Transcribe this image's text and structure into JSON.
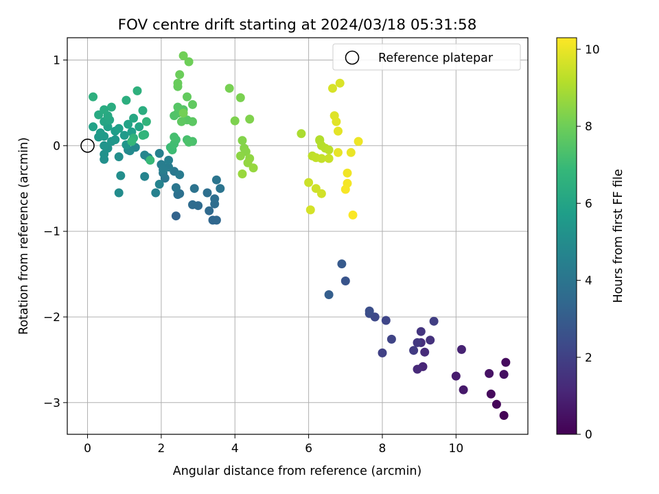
{
  "chart_data": {
    "type": "scatter",
    "title": "FOV centre drift starting at 2024/03/18 05:31:58",
    "xlabel": "Angular distance from reference (arcmin)",
    "ylabel": "Rotation from reference (arcmin)",
    "xlim": [
      -0.55,
      11.95
    ],
    "ylim": [
      -3.37,
      1.26
    ],
    "xticks": [
      0,
      2,
      4,
      6,
      8,
      10
    ],
    "yticks": [
      -3,
      -2,
      -1,
      0,
      1
    ],
    "grid": true,
    "legend": {
      "position": "top-right",
      "entries": [
        {
          "label": "Reference platepar",
          "marker": "open-circle"
        }
      ]
    },
    "reference_point": {
      "x": 0,
      "y": 0
    },
    "colorbar": {
      "label": "Hours from first FF file",
      "colormap": "viridis",
      "range": [
        0,
        10.3
      ],
      "ticks": [
        0,
        2,
        4,
        6,
        8,
        10
      ]
    },
    "colormap_stops": [
      "#440154",
      "#482878",
      "#3e4989",
      "#31688e",
      "#26828e",
      "#1f9e89",
      "#35b779",
      "#6ece58",
      "#b5de2b",
      "#fde725"
    ],
    "points": [
      {
        "x": 11.3,
        "y": -3.15,
        "h": 0.05
      },
      {
        "x": 11.1,
        "y": -3.02,
        "h": 0.15
      },
      {
        "x": 10.95,
        "y": -2.9,
        "h": 0.25
      },
      {
        "x": 11.35,
        "y": -2.53,
        "h": 0.3
      },
      {
        "x": 11.3,
        "y": -2.67,
        "h": 0.4
      },
      {
        "x": 10.9,
        "y": -2.66,
        "h": 0.5
      },
      {
        "x": 10.2,
        "y": -2.85,
        "h": 0.7
      },
      {
        "x": 10.0,
        "y": -2.69,
        "h": 0.8
      },
      {
        "x": 10.15,
        "y": -2.38,
        "h": 1.0
      },
      {
        "x": 9.1,
        "y": -2.58,
        "h": 1.1
      },
      {
        "x": 8.95,
        "y": -2.61,
        "h": 1.2
      },
      {
        "x": 9.15,
        "y": -2.41,
        "h": 1.3
      },
      {
        "x": 9.05,
        "y": -2.3,
        "h": 1.4
      },
      {
        "x": 9.3,
        "y": -2.27,
        "h": 1.5
      },
      {
        "x": 9.05,
        "y": -2.17,
        "h": 1.6
      },
      {
        "x": 8.95,
        "y": -2.3,
        "h": 1.7
      },
      {
        "x": 8.85,
        "y": -2.39,
        "h": 1.8
      },
      {
        "x": 9.4,
        "y": -2.05,
        "h": 1.9
      },
      {
        "x": 8.0,
        "y": -2.42,
        "h": 2.0
      },
      {
        "x": 8.25,
        "y": -2.26,
        "h": 2.1
      },
      {
        "x": 8.1,
        "y": -2.04,
        "h": 2.2
      },
      {
        "x": 7.8,
        "y": -2.0,
        "h": 2.3
      },
      {
        "x": 7.65,
        "y": -1.96,
        "h": 2.4
      },
      {
        "x": 7.65,
        "y": -1.93,
        "h": 2.5
      },
      {
        "x": 7.0,
        "y": -1.58,
        "h": 2.7
      },
      {
        "x": 6.9,
        "y": -1.38,
        "h": 2.9
      },
      {
        "x": 6.55,
        "y": -1.74,
        "h": 3.1
      },
      {
        "x": 2.4,
        "y": -0.82,
        "h": 3.3
      },
      {
        "x": 3.4,
        "y": -0.87,
        "h": 3.4
      },
      {
        "x": 3.5,
        "y": -0.87,
        "h": 3.45
      },
      {
        "x": 3.3,
        "y": -0.76,
        "h": 3.5
      },
      {
        "x": 3.0,
        "y": -0.7,
        "h": 3.55
      },
      {
        "x": 2.85,
        "y": -0.69,
        "h": 3.6
      },
      {
        "x": 3.45,
        "y": -0.68,
        "h": 3.65
      },
      {
        "x": 3.45,
        "y": -0.62,
        "h": 3.7
      },
      {
        "x": 3.25,
        "y": -0.55,
        "h": 3.75
      },
      {
        "x": 2.5,
        "y": -0.56,
        "h": 3.8
      },
      {
        "x": 2.45,
        "y": -0.57,
        "h": 3.85
      },
      {
        "x": 2.9,
        "y": -0.5,
        "h": 3.9
      },
      {
        "x": 3.6,
        "y": -0.5,
        "h": 3.95
      },
      {
        "x": 3.5,
        "y": -0.4,
        "h": 4.0
      },
      {
        "x": 2.4,
        "y": -0.49,
        "h": 4.05
      },
      {
        "x": 2.1,
        "y": -0.38,
        "h": 4.1
      },
      {
        "x": 2.35,
        "y": -0.3,
        "h": 4.15
      },
      {
        "x": 2.05,
        "y": -0.32,
        "h": 4.2
      },
      {
        "x": 2.5,
        "y": -0.34,
        "h": 4.25
      },
      {
        "x": 2.2,
        "y": -0.25,
        "h": 4.3
      },
      {
        "x": 2.0,
        "y": -0.22,
        "h": 4.35
      },
      {
        "x": 2.05,
        "y": -0.28,
        "h": 4.4
      },
      {
        "x": 2.2,
        "y": -0.17,
        "h": 4.45
      },
      {
        "x": 1.95,
        "y": -0.09,
        "h": 4.5
      },
      {
        "x": 1.85,
        "y": -0.55,
        "h": 4.55
      },
      {
        "x": 1.95,
        "y": -0.45,
        "h": 4.6
      },
      {
        "x": 1.55,
        "y": -0.36,
        "h": 4.65
      },
      {
        "x": 1.55,
        "y": -0.11,
        "h": 4.7
      },
      {
        "x": 1.65,
        "y": -0.14,
        "h": 4.75
      },
      {
        "x": 1.3,
        "y": -0.02,
        "h": 4.8
      },
      {
        "x": 1.1,
        "y": -0.05,
        "h": 4.85
      },
      {
        "x": 1.15,
        "y": -0.06,
        "h": 4.9
      },
      {
        "x": 0.85,
        "y": -0.55,
        "h": 5.0
      },
      {
        "x": 0.9,
        "y": -0.35,
        "h": 5.05
      },
      {
        "x": 0.85,
        "y": -0.13,
        "h": 5.1
      },
      {
        "x": 0.45,
        "y": -0.16,
        "h": 5.15
      },
      {
        "x": 0.45,
        "y": -0.1,
        "h": 5.2
      },
      {
        "x": 0.55,
        "y": -0.03,
        "h": 5.25
      },
      {
        "x": 0.45,
        "y": 0.0,
        "h": 5.3
      },
      {
        "x": 1.05,
        "y": 0.01,
        "h": 5.35
      },
      {
        "x": 0.65,
        "y": 0.05,
        "h": 5.4
      },
      {
        "x": 0.75,
        "y": 0.07,
        "h": 5.45
      },
      {
        "x": 0.3,
        "y": 0.1,
        "h": 5.5
      },
      {
        "x": 0.45,
        "y": 0.11,
        "h": 5.55
      },
      {
        "x": 1.0,
        "y": 0.12,
        "h": 5.6
      },
      {
        "x": 0.35,
        "y": 0.15,
        "h": 5.65
      },
      {
        "x": 0.75,
        "y": 0.17,
        "h": 5.7
      },
      {
        "x": 1.2,
        "y": 0.16,
        "h": 5.75
      },
      {
        "x": 0.85,
        "y": 0.2,
        "h": 5.8
      },
      {
        "x": 0.55,
        "y": 0.22,
        "h": 5.85
      },
      {
        "x": 0.15,
        "y": 0.22,
        "h": 5.9
      },
      {
        "x": 1.1,
        "y": 0.25,
        "h": 5.95
      },
      {
        "x": 1.4,
        "y": 0.22,
        "h": 6.0
      },
      {
        "x": 0.45,
        "y": 0.28,
        "h": 6.05
      },
      {
        "x": 0.6,
        "y": 0.3,
        "h": 6.1
      },
      {
        "x": 1.25,
        "y": 0.32,
        "h": 6.15
      },
      {
        "x": 0.55,
        "y": 0.35,
        "h": 6.2
      },
      {
        "x": 0.3,
        "y": 0.36,
        "h": 6.25
      },
      {
        "x": 0.45,
        "y": 0.42,
        "h": 6.3
      },
      {
        "x": 0.65,
        "y": 0.45,
        "h": 6.35
      },
      {
        "x": 1.5,
        "y": 0.41,
        "h": 6.4
      },
      {
        "x": 1.05,
        "y": 0.53,
        "h": 6.45
      },
      {
        "x": 0.15,
        "y": 0.57,
        "h": 6.5
      },
      {
        "x": 1.35,
        "y": 0.64,
        "h": 6.55
      },
      {
        "x": 1.25,
        "y": 0.09,
        "h": 6.6
      },
      {
        "x": 1.55,
        "y": 0.13,
        "h": 6.65
      },
      {
        "x": 1.6,
        "y": 0.28,
        "h": 6.7
      },
      {
        "x": 1.5,
        "y": 0.12,
        "h": 6.75
      },
      {
        "x": 1.2,
        "y": 0.05,
        "h": 6.8
      },
      {
        "x": 1.7,
        "y": -0.17,
        "h": 6.9
      },
      {
        "x": 2.25,
        "y": -0.02,
        "h": 7.0
      },
      {
        "x": 2.3,
        "y": -0.05,
        "h": 7.05
      },
      {
        "x": 2.35,
        "y": 0.02,
        "h": 7.1
      },
      {
        "x": 2.4,
        "y": 0.07,
        "h": 7.15
      },
      {
        "x": 2.35,
        "y": 0.1,
        "h": 7.2
      },
      {
        "x": 2.7,
        "y": 0.07,
        "h": 7.25
      },
      {
        "x": 2.85,
        "y": 0.05,
        "h": 7.3
      },
      {
        "x": 2.75,
        "y": 0.04,
        "h": 7.35
      },
      {
        "x": 2.35,
        "y": 0.35,
        "h": 7.4
      },
      {
        "x": 2.45,
        "y": 0.38,
        "h": 7.45
      },
      {
        "x": 2.6,
        "y": 0.42,
        "h": 7.5
      },
      {
        "x": 2.45,
        "y": 0.45,
        "h": 7.55
      },
      {
        "x": 2.7,
        "y": 0.3,
        "h": 7.6
      },
      {
        "x": 2.85,
        "y": 0.28,
        "h": 7.65
      },
      {
        "x": 2.55,
        "y": 0.28,
        "h": 7.7
      },
      {
        "x": 2.85,
        "y": 0.48,
        "h": 7.75
      },
      {
        "x": 2.7,
        "y": 0.57,
        "h": 7.8
      },
      {
        "x": 2.45,
        "y": 0.69,
        "h": 7.85
      },
      {
        "x": 2.45,
        "y": 0.73,
        "h": 7.9
      },
      {
        "x": 2.5,
        "y": 0.83,
        "h": 7.95
      },
      {
        "x": 2.75,
        "y": 0.98,
        "h": 8.0
      },
      {
        "x": 2.6,
        "y": 1.05,
        "h": 8.05
      },
      {
        "x": 2.6,
        "y": 0.38,
        "h": 8.1
      },
      {
        "x": 3.85,
        "y": 0.67,
        "h": 8.15
      },
      {
        "x": 4.15,
        "y": 0.56,
        "h": 8.2
      },
      {
        "x": 4.0,
        "y": 0.29,
        "h": 8.25
      },
      {
        "x": 4.4,
        "y": 0.31,
        "h": 8.3
      },
      {
        "x": 4.2,
        "y": 0.06,
        "h": 8.35
      },
      {
        "x": 4.25,
        "y": -0.03,
        "h": 8.4
      },
      {
        "x": 4.3,
        "y": -0.07,
        "h": 8.45
      },
      {
        "x": 4.15,
        "y": -0.12,
        "h": 8.5
      },
      {
        "x": 4.4,
        "y": -0.15,
        "h": 8.55
      },
      {
        "x": 4.35,
        "y": -0.2,
        "h": 8.6
      },
      {
        "x": 4.5,
        "y": -0.26,
        "h": 8.65
      },
      {
        "x": 4.2,
        "y": -0.33,
        "h": 8.7
      },
      {
        "x": 5.8,
        "y": 0.14,
        "h": 9.0
      },
      {
        "x": 6.3,
        "y": 0.06,
        "h": 9.05
      },
      {
        "x": 6.3,
        "y": 0.07,
        "h": 9.1
      },
      {
        "x": 6.35,
        "y": 0.0,
        "h": 9.15
      },
      {
        "x": 6.45,
        "y": -0.03,
        "h": 9.2
      },
      {
        "x": 6.55,
        "y": -0.05,
        "h": 9.25
      },
      {
        "x": 6.1,
        "y": -0.12,
        "h": 9.3
      },
      {
        "x": 6.2,
        "y": -0.14,
        "h": 9.35
      },
      {
        "x": 6.35,
        "y": -0.15,
        "h": 9.4
      },
      {
        "x": 6.55,
        "y": -0.15,
        "h": 9.45
      },
      {
        "x": 6.0,
        "y": -0.43,
        "h": 9.5
      },
      {
        "x": 6.2,
        "y": -0.5,
        "h": 9.55
      },
      {
        "x": 6.35,
        "y": -0.56,
        "h": 9.6
      },
      {
        "x": 6.05,
        "y": -0.75,
        "h": 9.65
      },
      {
        "x": 6.65,
        "y": 0.67,
        "h": 9.7
      },
      {
        "x": 6.85,
        "y": 0.73,
        "h": 9.75
      },
      {
        "x": 6.7,
        "y": 0.35,
        "h": 9.8
      },
      {
        "x": 6.75,
        "y": 0.28,
        "h": 9.85
      },
      {
        "x": 6.8,
        "y": 0.17,
        "h": 9.9
      },
      {
        "x": 6.8,
        "y": -0.08,
        "h": 9.95
      },
      {
        "x": 7.15,
        "y": -0.08,
        "h": 10.0
      },
      {
        "x": 7.35,
        "y": 0.05,
        "h": 10.05
      },
      {
        "x": 7.05,
        "y": -0.32,
        "h": 10.1
      },
      {
        "x": 7.05,
        "y": -0.44,
        "h": 10.15
      },
      {
        "x": 7.0,
        "y": -0.51,
        "h": 10.2
      },
      {
        "x": 7.2,
        "y": -0.81,
        "h": 10.25
      }
    ]
  }
}
